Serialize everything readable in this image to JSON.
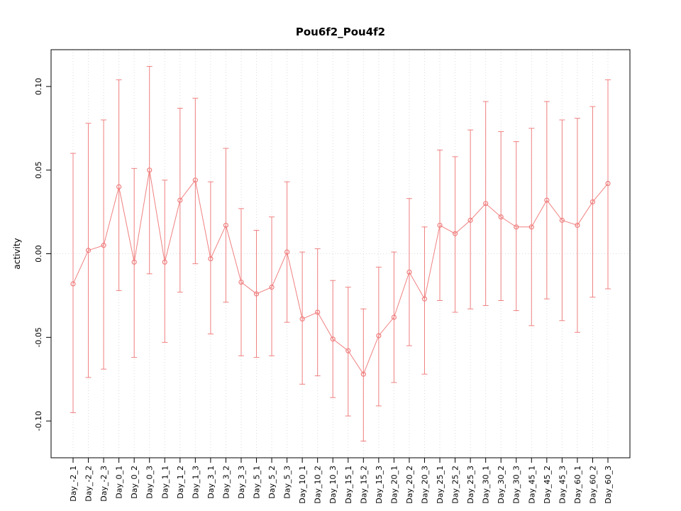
{
  "chart_data": {
    "type": "line",
    "title": "Pou6f2_Pou4f2",
    "xlabel": "",
    "ylabel": "activity",
    "ylim": [
      -0.122,
      0.122
    ],
    "yticks": [
      -0.1,
      -0.05,
      0.0,
      0.05,
      0.1
    ],
    "grid": true,
    "legend": "none",
    "zero_line": 0,
    "series_color": "#F08080",
    "grid_color": "#DCDCDC",
    "axis_color": "#000000",
    "categories": [
      "Day_-2_1",
      "Day_-2_2",
      "Day_-2_3",
      "Day_0_1",
      "Day_0_2",
      "Day_0_3",
      "Day_1_1",
      "Day_1_2",
      "Day_1_3",
      "Day_3_1",
      "Day_3_2",
      "Day_3_3",
      "Day_5_1",
      "Day_5_2",
      "Day_5_3",
      "Day_10_1",
      "Day_10_2",
      "Day_10_3",
      "Day_15_1",
      "Day_15_2",
      "Day_15_3",
      "Day_20_1",
      "Day_20_2",
      "Day_20_3",
      "Day_25_1",
      "Day_25_2",
      "Day_25_3",
      "Day_30_1",
      "Day_30_2",
      "Day_30_3",
      "Day_45_1",
      "Day_45_2",
      "Day_45_3",
      "Day_60_1",
      "Day_60_2",
      "Day_60_3"
    ],
    "series": [
      {
        "name": "activity",
        "values": [
          -0.018,
          0.002,
          0.005,
          0.04,
          -0.005,
          0.05,
          -0.005,
          0.032,
          0.044,
          -0.003,
          0.017,
          -0.017,
          -0.024,
          -0.02,
          0.001,
          -0.039,
          -0.035,
          -0.051,
          -0.058,
          -0.072,
          -0.049,
          -0.038,
          -0.011,
          -0.027,
          0.017,
          0.012,
          0.02,
          0.03,
          0.022,
          0.016,
          0.016,
          0.032,
          0.02,
          0.017,
          0.031,
          0.042
        ],
        "lower": [
          -0.095,
          -0.074,
          -0.069,
          -0.022,
          -0.062,
          -0.012,
          -0.053,
          -0.023,
          -0.006,
          -0.048,
          -0.029,
          -0.061,
          -0.062,
          -0.061,
          -0.041,
          -0.078,
          -0.073,
          -0.086,
          -0.097,
          -0.112,
          -0.091,
          -0.077,
          -0.055,
          -0.072,
          -0.028,
          -0.035,
          -0.033,
          -0.031,
          -0.028,
          -0.034,
          -0.043,
          -0.027,
          -0.04,
          -0.047,
          -0.026,
          -0.021
        ],
        "upper": [
          0.06,
          0.078,
          0.08,
          0.104,
          0.051,
          0.112,
          0.044,
          0.087,
          0.093,
          0.043,
          0.063,
          0.027,
          0.014,
          0.022,
          0.043,
          0.001,
          0.003,
          -0.016,
          -0.02,
          -0.033,
          -0.008,
          0.001,
          0.033,
          0.016,
          0.062,
          0.058,
          0.074,
          0.091,
          0.073,
          0.067,
          0.075,
          0.091,
          0.08,
          0.081,
          0.088,
          0.104
        ]
      }
    ]
  }
}
